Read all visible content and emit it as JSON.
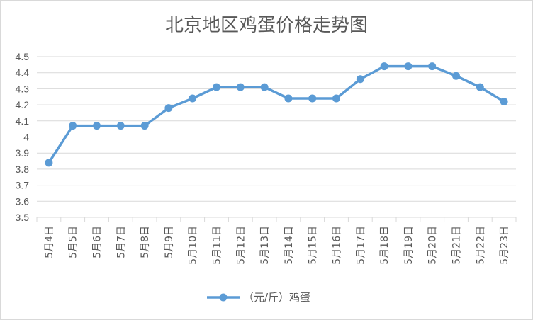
{
  "chart_data": {
    "type": "line",
    "title": "北京地区鸡蛋价格走势图",
    "categories": [
      "5月4日",
      "5月5日",
      "5月6日",
      "5月7日",
      "5月8日",
      "5月9日",
      "5月10日",
      "5月11日",
      "5月12日",
      "5月13日",
      "5月14日",
      "5月15日",
      "5月16日",
      "5月17日",
      "5月18日",
      "5月19日",
      "5月20日",
      "5月21日",
      "5月22日",
      "5月23日"
    ],
    "series": [
      {
        "name": "（元/斤）鸡蛋",
        "values": [
          3.84,
          4.07,
          4.07,
          4.07,
          4.07,
          4.18,
          4.24,
          4.31,
          4.31,
          4.31,
          4.24,
          4.24,
          4.24,
          4.36,
          4.44,
          4.44,
          4.44,
          4.38,
          4.31,
          4.22
        ]
      }
    ],
    "ylim": [
      3.5,
      4.5
    ],
    "yticks": [
      "3.5",
      "3.6",
      "3.7",
      "3.8",
      "3.9",
      "4",
      "4.1",
      "4.2",
      "4.3",
      "4.4",
      "4.5"
    ],
    "xlabel": "",
    "ylabel": "",
    "grid": true,
    "legend_position": "bottom",
    "colors": {
      "line": "#5b9bd5",
      "grid": "#d9d9d9",
      "text": "#595959"
    }
  }
}
